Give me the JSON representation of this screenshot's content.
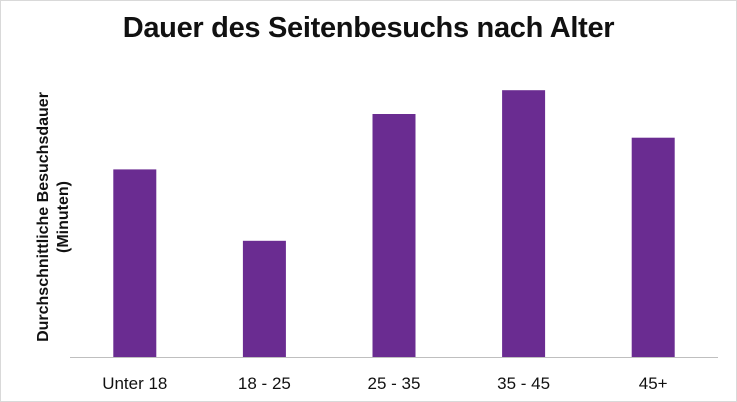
{
  "chart_data": {
    "type": "bar",
    "title": "Dauer des Seitenbesuchs nach Alter",
    "xlabel": "",
    "ylabel_line1": "Durchschnittliche Besuchsdauer",
    "ylabel_line2": "(Minuten)",
    "categories": [
      "Unter 18",
      "18 - 25",
      "25 - 35",
      "35 - 45",
      "45+"
    ],
    "values": [
      7.1,
      4.4,
      9.2,
      10.1,
      8.3
    ],
    "ylim": [
      0,
      12
    ],
    "grid": false,
    "legend": "none",
    "y_tick_labels_shown": false
  },
  "colors": {
    "bar": "#6a2c91",
    "axis": "#bfbfbf",
    "text": "#111111"
  }
}
